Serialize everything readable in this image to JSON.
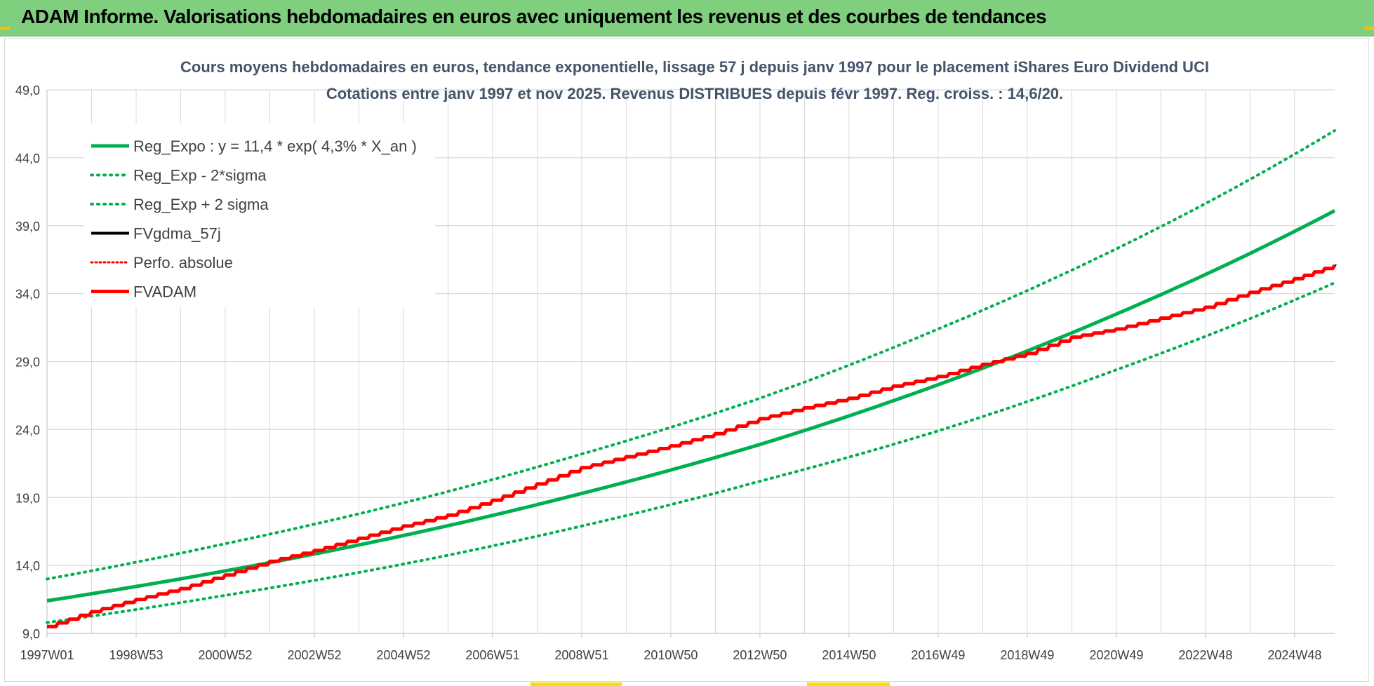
{
  "header": {
    "title": "ADAM Informe. Valorisations hebdomadaires en euros avec uniquement les revenus et des courbes de tendances"
  },
  "colors": {
    "header_bg": "#7fcf7f",
    "green": "#00b050",
    "red": "#ff0000",
    "black": "#000000",
    "grid": "#d9d9d9",
    "text": "#404040"
  },
  "chart_data": {
    "type": "line",
    "title_line1": "Cours moyens hebdomadaires en euros, tendance exponentielle, lissage 57 j depuis janv 1997 pour le placement iShares Euro Dividend UCI",
    "title_line2": "Cotations entre janv 1997 et nov 2025. Revenus DISTRIBUES depuis févr 1997. Reg. croiss. : 14,6/20.",
    "x_range": [
      1997.0,
      2025.9
    ],
    "ylim": [
      9.0,
      49.0
    ],
    "y_ticks": [
      "9,0",
      "14,0",
      "19,0",
      "24,0",
      "29,0",
      "34,0",
      "39,0",
      "44,0",
      "49,0"
    ],
    "x_ticks": [
      {
        "label": "1997W01",
        "x": 1997.0
      },
      {
        "label": "1998W53",
        "x": 1999.0
      },
      {
        "label": "2000W52",
        "x": 2001.0
      },
      {
        "label": "2002W52",
        "x": 2003.0
      },
      {
        "label": "2004W52",
        "x": 2005.0
      },
      {
        "label": "2006W51",
        "x": 2007.0
      },
      {
        "label": "2008W51",
        "x": 2009.0
      },
      {
        "label": "2010W50",
        "x": 2011.0
      },
      {
        "label": "2012W50",
        "x": 2013.0
      },
      {
        "label": "2014W50",
        "x": 2015.0
      },
      {
        "label": "2016W49",
        "x": 2017.0
      },
      {
        "label": "2018W49",
        "x": 2019.0
      },
      {
        "label": "2020W49",
        "x": 2021.0
      },
      {
        "label": "2022W48",
        "x": 2023.0
      },
      {
        "label": "2024W48",
        "x": 2025.0
      }
    ],
    "legend": [
      {
        "label": "Reg_Expo : y = 11,4 * exp( 4,3% *  X_an )",
        "series": "reg_expo"
      },
      {
        "label": "Reg_Exp - 2*sigma",
        "series": "reg_minus"
      },
      {
        "label": "Reg_Exp + 2 sigma",
        "series": "reg_plus"
      },
      {
        "label": "FVgdma_57j",
        "series": "fvgdma"
      },
      {
        "label": "Perfo. absolue",
        "series": "perfo"
      },
      {
        "label": "FVADAM",
        "series": "fvadam"
      }
    ],
    "series": [
      {
        "name": "reg_expo",
        "label": "Reg_Expo",
        "style": "solid-green",
        "x": [
          1997.0,
          2001.0,
          2005.0,
          2009.0,
          2013.0,
          2017.0,
          2021.0,
          2025.9
        ],
        "values": [
          11.4,
          13.6,
          16.2,
          19.3,
          22.9,
          27.3,
          32.5,
          40.1
        ]
      },
      {
        "name": "reg_minus",
        "label": "Reg_Exp - 2*sigma",
        "style": "dotted-green",
        "x": [
          1997.0,
          2001.0,
          2005.0,
          2009.0,
          2013.0,
          2017.0,
          2021.0,
          2025.9
        ],
        "values": [
          9.8,
          11.8,
          14.1,
          16.9,
          20.2,
          23.9,
          28.4,
          34.8
        ]
      },
      {
        "name": "reg_plus",
        "label": "Reg_Exp + 2 sigma",
        "style": "dotted-green",
        "x": [
          1997.0,
          2001.0,
          2005.0,
          2009.0,
          2013.0,
          2017.0,
          2021.0,
          2025.9
        ],
        "values": [
          13.0,
          15.6,
          18.6,
          22.2,
          26.3,
          31.4,
          37.3,
          46.0
        ]
      },
      {
        "name": "fvadam",
        "label": "FVADAM",
        "style": "step-red",
        "x": [
          1997.0,
          1998.0,
          1999.0,
          2000.0,
          2001.0,
          2002.0,
          2003.0,
          2004.0,
          2005.0,
          2006.0,
          2007.0,
          2008.0,
          2009.0,
          2010.0,
          2011.0,
          2012.0,
          2013.0,
          2014.0,
          2015.0,
          2016.0,
          2017.0,
          2018.0,
          2019.0,
          2020.0,
          2021.0,
          2022.0,
          2023.0,
          2024.0,
          2025.0,
          2025.9
        ],
        "values": [
          9.5,
          10.6,
          11.5,
          12.3,
          13.3,
          14.3,
          15.1,
          16.0,
          16.9,
          17.7,
          18.8,
          20.0,
          21.2,
          22.0,
          22.8,
          23.7,
          24.8,
          25.6,
          26.3,
          27.2,
          27.9,
          28.8,
          29.6,
          30.8,
          31.4,
          32.2,
          33.0,
          34.1,
          35.1,
          36.1
        ]
      }
    ]
  }
}
